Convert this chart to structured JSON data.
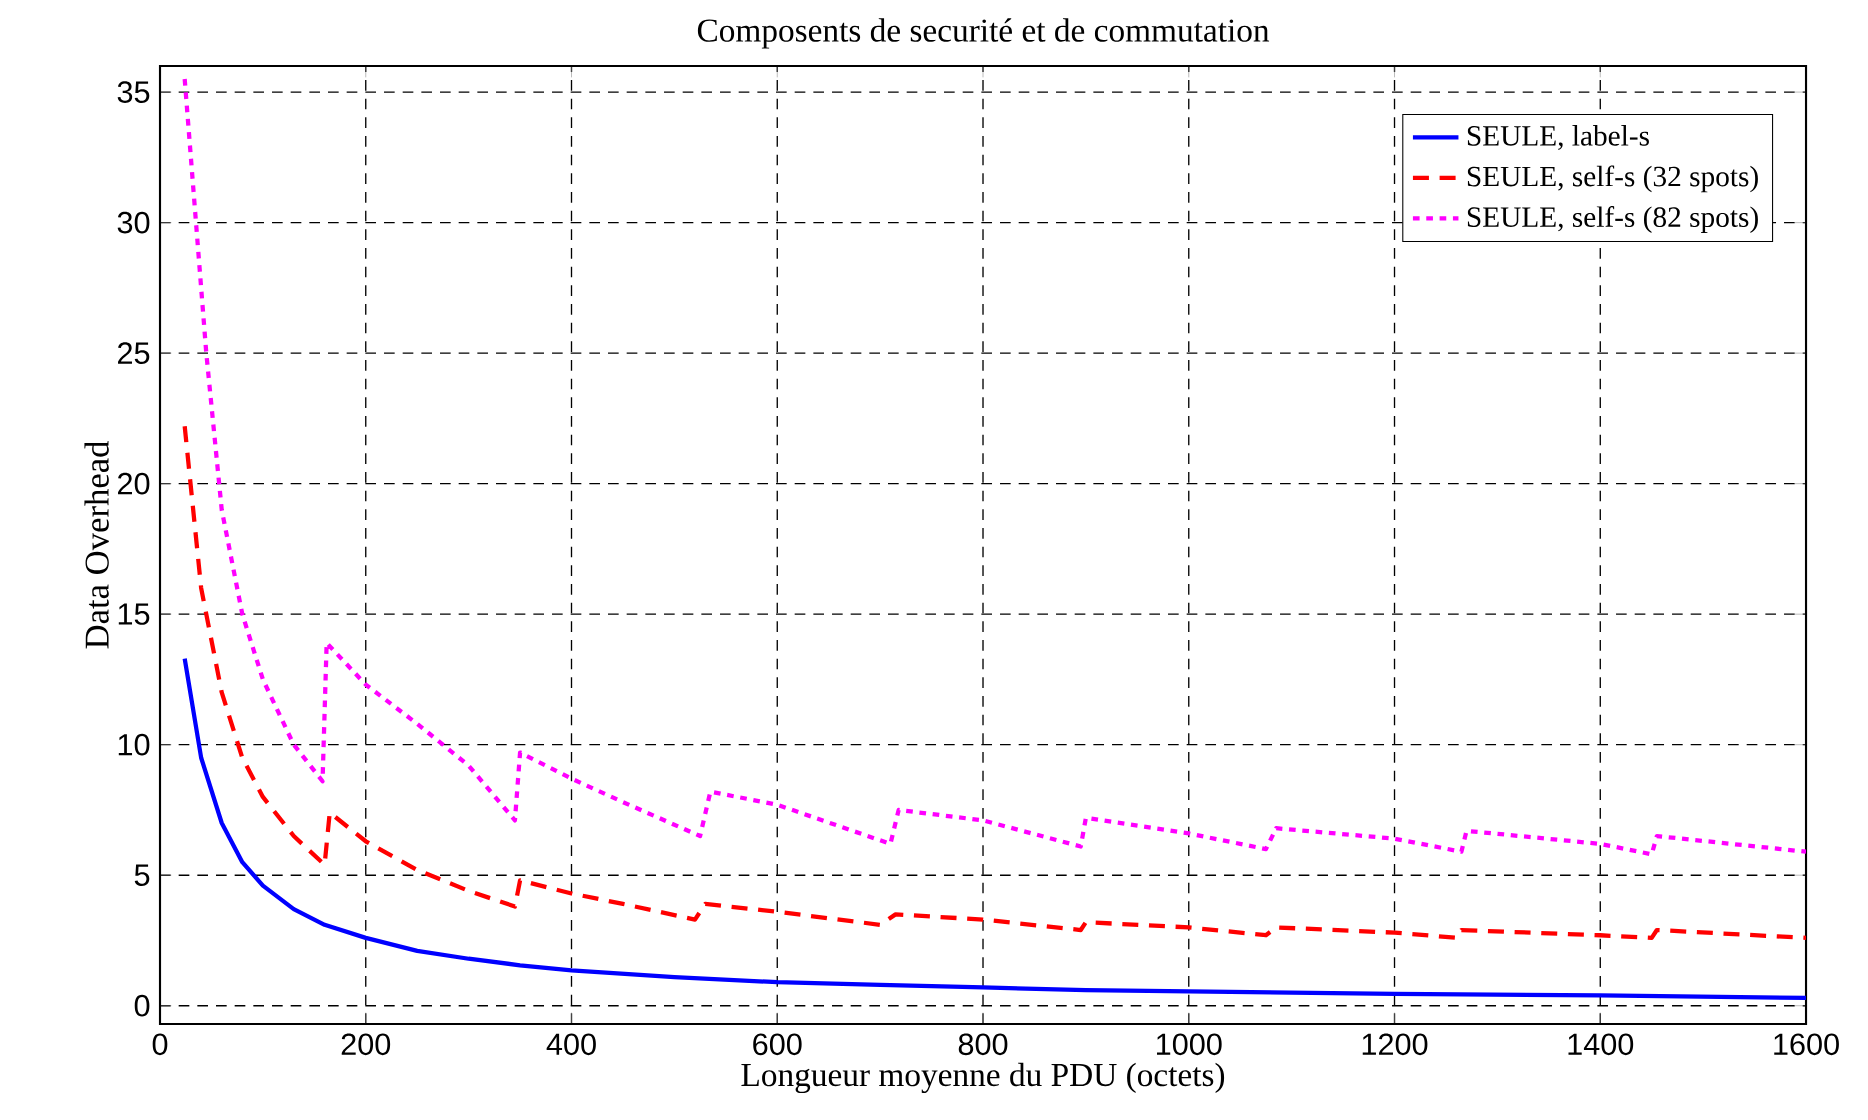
{
  "chart_data": {
    "type": "line",
    "title": "Composents de securité et de commutation",
    "xlabel": "Longueur moyenne du PDU (octets)",
    "ylabel": "Data Overhead",
    "xlim": [
      0,
      1600
    ],
    "xticks": [
      0,
      200,
      400,
      600,
      800,
      1000,
      1200,
      1400,
      1600
    ],
    "ylim": [
      -0.7,
      36
    ],
    "yticks": [
      0,
      5,
      10,
      15,
      20,
      25,
      30,
      35
    ],
    "grid": true,
    "legend": "top right",
    "series": [
      {
        "name": "SEULE, label-s",
        "color": "#0000ff",
        "line_style": "solid",
        "x": [
          24,
          40,
          60,
          80,
          100,
          130,
          160,
          200,
          250,
          300,
          350,
          400,
          500,
          600,
          700,
          800,
          900,
          1000,
          1200,
          1400,
          1500,
          1600
        ],
        "values": [
          13.3,
          9.5,
          7,
          5.5,
          4.6,
          3.7,
          3.1,
          2.6,
          2.1,
          1.8,
          1.55,
          1.35,
          1.1,
          0.9,
          0.8,
          0.7,
          0.6,
          0.55,
          0.45,
          0.4,
          0.35,
          0.3
        ]
      },
      {
        "name": "SEULE, self-s (32 spots)",
        "color": "#ff0000",
        "line_style": "dashed",
        "x": [
          24,
          40,
          60,
          80,
          100,
          130,
          160,
          165,
          200,
          250,
          300,
          345,
          350,
          400,
          450,
          520,
          530,
          600,
          700,
          715,
          800,
          895,
          900,
          1000,
          1075,
          1085,
          1200,
          1260,
          1265,
          1400,
          1450,
          1455,
          1600
        ],
        "values": [
          22.2,
          16,
          12,
          9.5,
          8,
          6.5,
          5.4,
          7.4,
          6.3,
          5.2,
          4.4,
          3.8,
          4.8,
          4.3,
          3.9,
          3.3,
          3.9,
          3.6,
          3.1,
          3.5,
          3.3,
          2.9,
          3.2,
          3.0,
          2.7,
          3.0,
          2.8,
          2.6,
          2.9,
          2.7,
          2.6,
          2.9,
          2.6
        ]
      },
      {
        "name": "SEULE, self-s (82 spots)",
        "color": "#ff00ff",
        "line_style": "dotted",
        "x": [
          24,
          35,
          45,
          60,
          80,
          100,
          130,
          158,
          162,
          200,
          250,
          300,
          345,
          350,
          400,
          450,
          525,
          535,
          600,
          710,
          718,
          800,
          895,
          900,
          1000,
          1075,
          1085,
          1200,
          1265,
          1270,
          1400,
          1450,
          1455,
          1600
        ],
        "values": [
          35.5,
          30,
          25,
          19,
          15,
          12.5,
          10,
          8.6,
          13.9,
          12.3,
          10.8,
          9.2,
          7.1,
          9.7,
          8.7,
          7.8,
          6.5,
          8.2,
          7.7,
          6.2,
          7.5,
          7.1,
          6.1,
          7.2,
          6.6,
          6.0,
          6.8,
          6.4,
          5.9,
          6.7,
          6.2,
          5.8,
          6.5,
          5.9
        ]
      }
    ]
  }
}
